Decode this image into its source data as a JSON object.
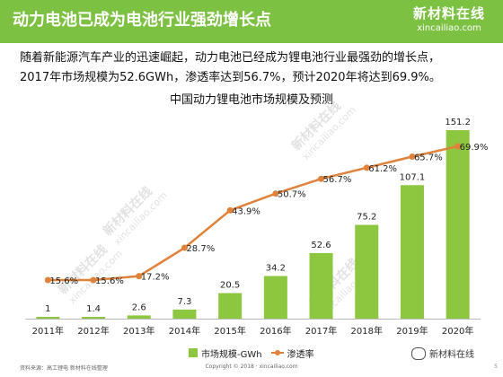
{
  "header": {
    "title": "动力电池已成为电池行业强劲增长点",
    "brand_name": "新材料在线",
    "brand_domain": "xincailiao.com"
  },
  "intro": {
    "line1": "随着新能源汽车产业的迅速崛起，动力电池已经成为锂电池行业最强劲的增长点，",
    "line2": "2017年市场规模为52.6GWh，渗透率达到56.7%，预计2020年将达到69.9%。"
  },
  "chart_data": {
    "type": "bar",
    "title": "中国动力锂电池市场规模及预测",
    "categories": [
      "2011年",
      "2012年",
      "2013年",
      "2014年",
      "2015年",
      "2016年",
      "2017年",
      "2018年",
      "2019年",
      "2020年"
    ],
    "series": [
      {
        "name": "市场规模-GWh",
        "type": "bar",
        "values": [
          1,
          1.4,
          2.6,
          7.3,
          20.5,
          34.2,
          52.6,
          75.2,
          107.1,
          151.2
        ],
        "value_labels": [
          "1",
          "1.4",
          "2.6",
          "7.3",
          "20.5",
          "34.2",
          "52.6",
          "75.2",
          "107.1",
          "151.2"
        ],
        "color": "#8dc63f"
      },
      {
        "name": "渗透率",
        "type": "line",
        "values": [
          15.6,
          15.6,
          17.2,
          28.7,
          43.9,
          50.7,
          56.7,
          61.2,
          65.7,
          69.9
        ],
        "value_labels": [
          "15.6%",
          "15.6%",
          "17.2%",
          "28.7%",
          "43.9%",
          "50.7%",
          "56.7%",
          "61.2%",
          "65.7%",
          "69.9%"
        ],
        "color": "#e0823a"
      }
    ],
    "legend_position": "bottom",
    "grid": false
  },
  "footer": {
    "source": "资料来源：高工锂电 新材料在线整理",
    "copyright": "Copyright © 2018 · xincailiao.com",
    "wechat": "新材料在线",
    "page": "5"
  },
  "watermark": {
    "name": "新材料在线",
    "domain": "xincailiao.com"
  }
}
